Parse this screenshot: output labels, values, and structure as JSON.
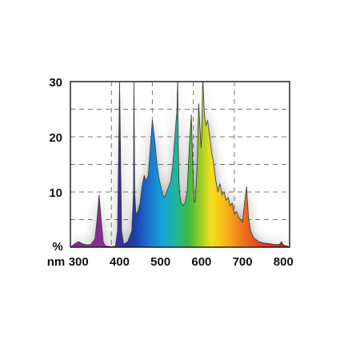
{
  "chart_data": {
    "type": "area",
    "title": "",
    "xlabel": "nm",
    "ylabel": "%",
    "xlim": [
      280,
      815
    ],
    "ylim": [
      0,
      30
    ],
    "x_ticks": [
      300,
      400,
      500,
      600,
      700,
      800
    ],
    "x_tick_labels": [
      "300",
      "400",
      "500",
      "600",
      "700",
      "800"
    ],
    "y_ticks": [
      10,
      20,
      30
    ],
    "y_tick_labels": [
      "10",
      "20",
      "30"
    ],
    "grid": true,
    "grid_style": "dashed",
    "gridlines_y": [
      5,
      10,
      15,
      20,
      25
    ],
    "gridlines_x": [
      380,
      480,
      580,
      680
    ],
    "series": [
      {
        "x": [
          280,
          290,
          300,
          305,
          310,
          320,
          330,
          340,
          345,
          350,
          355,
          360,
          365,
          370,
          380,
          390,
          395,
          400,
          405,
          410,
          415,
          420,
          425,
          430,
          434,
          435,
          437,
          440,
          445,
          450,
          455,
          460,
          465,
          470,
          475,
          480,
          485,
          490,
          493,
          496,
          499,
          502,
          505,
          510,
          515,
          520,
          525,
          530,
          535,
          540,
          542,
          543,
          545,
          547,
          550,
          555,
          560,
          565,
          570,
          575,
          577,
          580,
          582,
          585,
          587,
          590,
          593,
          596,
          599,
          601,
          603,
          607,
          611,
          615,
          620,
          625,
          630,
          635,
          640,
          645,
          650,
          655,
          660,
          665,
          670,
          675,
          680,
          685,
          690,
          695,
          700,
          705,
          710,
          715,
          720,
          725,
          730,
          740,
          750,
          760,
          770,
          780,
          790,
          795,
          800,
          810,
          815
        ],
        "y": [
          0,
          0.6,
          1.0,
          0.8,
          0.6,
          0.4,
          0.5,
          1.5,
          5.0,
          9.5,
          5.0,
          1.0,
          0.3,
          0.2,
          0.1,
          0.2,
          3.0,
          30,
          3.0,
          0.5,
          0.8,
          1.0,
          2.0,
          3.0,
          10,
          31,
          10,
          6.0,
          6.5,
          8.0,
          11,
          13,
          12,
          13,
          18,
          23,
          20,
          16,
          14,
          12.5,
          11.5,
          10.5,
          9.5,
          9.0,
          10,
          11,
          12,
          15,
          20,
          25,
          31,
          20,
          12,
          9.5,
          8.0,
          7.5,
          8.0,
          10,
          18,
          24,
          19,
          12,
          8.0,
          8.5,
          11,
          16,
          26,
          22,
          18,
          21,
          31,
          24,
          22,
          23,
          20,
          17,
          15,
          12,
          10,
          11.5,
          9.5,
          10,
          8.5,
          9.0,
          7.5,
          8.0,
          6.0,
          6.5,
          5.5,
          5.0,
          4.5,
          8.0,
          11,
          5.0,
          3.0,
          2.0,
          1.5,
          1.0,
          0.8,
          0.7,
          0.6,
          0.5,
          0.5,
          1.0,
          0.4,
          0.2,
          0
        ]
      }
    ]
  }
}
